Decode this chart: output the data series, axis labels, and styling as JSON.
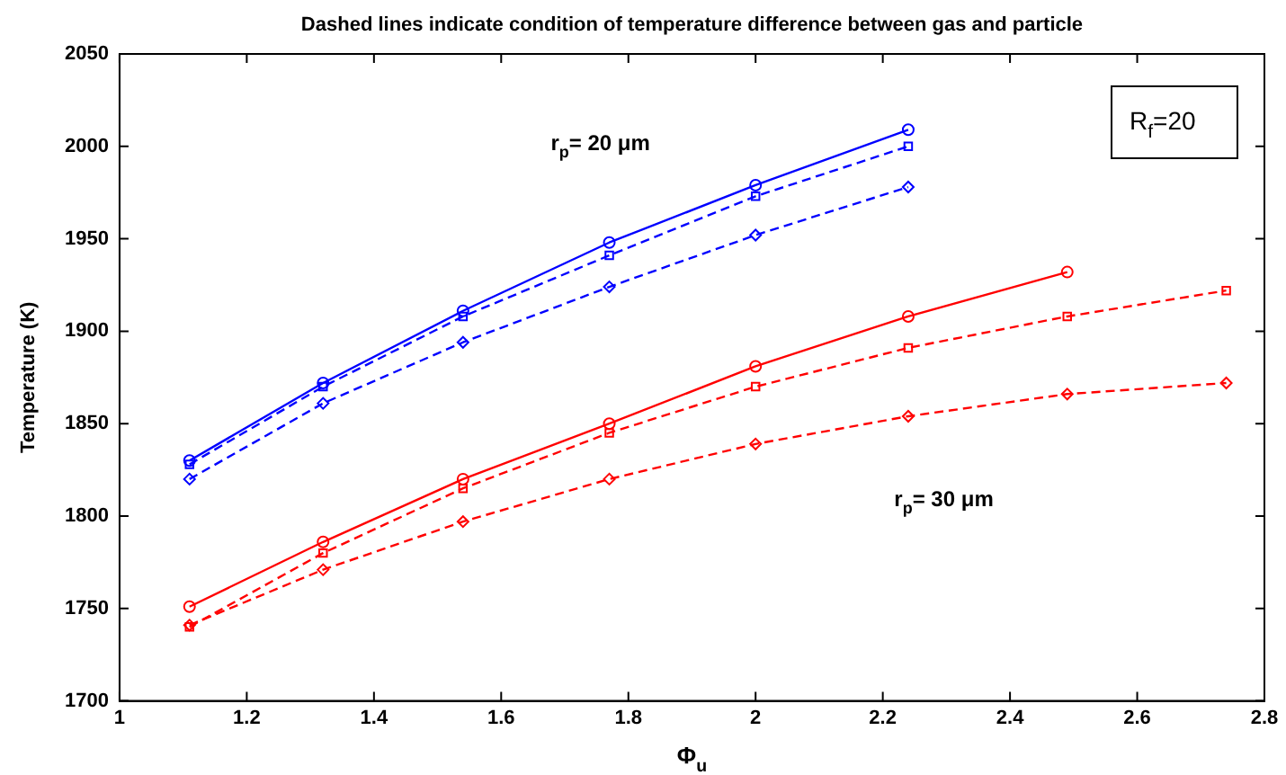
{
  "chart_data": {
    "type": "line",
    "title": "Dashed lines indicate condition of temperature difference between gas and particle",
    "xlabel": "Φ$_{u}$",
    "ylabel": "Temperature (K)",
    "xlim": [
      1,
      2.8
    ],
    "xticks": [
      1,
      1.2,
      1.4,
      1.6,
      1.8,
      2,
      2.2,
      2.4,
      2.6,
      2.8
    ],
    "ylim": [
      1700,
      2050
    ],
    "yticks": [
      1700,
      1750,
      1800,
      1850,
      1900,
      1950,
      2000,
      2050
    ],
    "grid": false,
    "legend": false,
    "annotations": [
      "r$_{p}$= 20 μm",
      "r$_{p}$= 30 μm",
      "R$_{f}$=20"
    ],
    "series": [
      {
        "color": "#0000ff",
        "marker": "circle",
        "line_style": "solid",
        "x": [
          1.11,
          1.32,
          1.54,
          1.77,
          2.0,
          2.24
        ],
        "values": [
          1830,
          1872,
          1911,
          1948,
          1979,
          2009
        ]
      },
      {
        "color": "#0000ff",
        "marker": "square",
        "line_style": "dashed",
        "x": [
          1.11,
          1.32,
          1.54,
          1.77,
          2.0,
          2.24
        ],
        "values": [
          1828,
          1870,
          1908,
          1941,
          1973,
          2000
        ]
      },
      {
        "color": "#0000ff",
        "marker": "diamond",
        "line_style": "dashed",
        "x": [
          1.11,
          1.32,
          1.54,
          1.77,
          2.0,
          2.24
        ],
        "values": [
          1820,
          1861,
          1894,
          1924,
          1952,
          1978
        ]
      },
      {
        "color": "#ff0000",
        "marker": "circle",
        "line_style": "solid",
        "x": [
          1.11,
          1.32,
          1.54,
          1.77,
          2.0,
          2.24,
          2.49
        ],
        "values": [
          1751,
          1786,
          1820,
          1850,
          1881,
          1908,
          1932
        ]
      },
      {
        "color": "#ff0000",
        "marker": "square",
        "line_style": "dashed",
        "x": [
          1.11,
          1.32,
          1.54,
          1.77,
          2.0,
          2.24,
          2.49,
          2.74
        ],
        "values": [
          1740,
          1780,
          1815,
          1845,
          1870,
          1891,
          1908,
          1922
        ]
      },
      {
        "color": "#ff0000",
        "marker": "diamond",
        "line_style": "dashed",
        "x": [
          1.11,
          1.32,
          1.54,
          1.77,
          2.0,
          2.24,
          2.49,
          2.74
        ],
        "values": [
          1741,
          1771,
          1797,
          1820,
          1839,
          1854,
          1866,
          1872
        ]
      }
    ]
  }
}
